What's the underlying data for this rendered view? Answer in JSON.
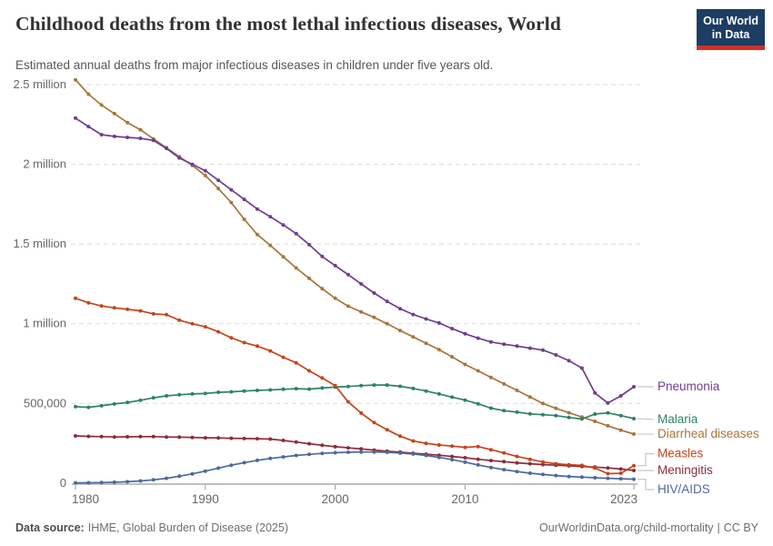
{
  "header": {
    "title": "Childhood deaths from the most lethal infectious diseases, World",
    "subtitle": "Estimated annual deaths from major infectious diseases in children under five years old.",
    "logo": {
      "line1": "Our World",
      "line2": "in Data",
      "bg_color": "#1d3d63",
      "accent_color": "#d22f27"
    }
  },
  "footer": {
    "source_label": "Data source:",
    "source_value": "IHME, Global Burden of Disease (2025)",
    "url_text": "OurWorldinData.org/child-mortality",
    "divider": "|",
    "license_text": "CC BY"
  },
  "chart_data": {
    "type": "line",
    "title": "Childhood deaths from the most lethal infectious diseases, World",
    "xlabel": "",
    "ylabel": "",
    "xlim": [
      1980,
      2023
    ],
    "ylim": [
      0,
      2500000
    ],
    "grid": "dashed-horizontal",
    "legend_position": "right-of-line-ends",
    "x_ticks": [
      1980,
      1990,
      2000,
      2010,
      2023
    ],
    "y_ticks": [
      {
        "value": 0,
        "label": "0"
      },
      {
        "value": 500000,
        "label": "500,000"
      },
      {
        "value": 1000000,
        "label": "1 million"
      },
      {
        "value": 1500000,
        "label": "1.5 million"
      },
      {
        "value": 2000000,
        "label": "2 million"
      },
      {
        "value": 2500000,
        "label": "2.5 million"
      }
    ],
    "colors": {
      "grid": "#dcdcdc",
      "axis": "#9b9b9b",
      "tick_label": "#666666",
      "connector": "#c8c8c8"
    },
    "years": [
      1980,
      1981,
      1982,
      1983,
      1984,
      1985,
      1986,
      1987,
      1988,
      1989,
      1990,
      1991,
      1992,
      1993,
      1994,
      1995,
      1996,
      1997,
      1998,
      1999,
      2000,
      2001,
      2002,
      2003,
      2004,
      2005,
      2006,
      2007,
      2008,
      2009,
      2010,
      2011,
      2012,
      2013,
      2014,
      2015,
      2016,
      2017,
      2018,
      2019,
      2020,
      2021,
      2022,
      2023
    ],
    "series": [
      {
        "id": "diarrheal-diseases",
        "name": "Diarrheal diseases",
        "color": "#A6763C",
        "label_value": 308000,
        "values": [
          2530000,
          2440000,
          2372000,
          2318000,
          2262000,
          2217000,
          2160000,
          2104000,
          2048000,
          1993000,
          1930000,
          1848000,
          1760000,
          1655000,
          1560000,
          1492000,
          1420000,
          1350000,
          1285000,
          1220000,
          1160000,
          1110000,
          1075000,
          1040000,
          1000000,
          958000,
          918000,
          878000,
          838000,
          793000,
          745000,
          705000,
          664000,
          623000,
          582000,
          541000,
          500000,
          470000,
          442000,
          415000,
          388000,
          360000,
          333000,
          308000
        ]
      },
      {
        "id": "malaria",
        "name": "Malaria",
        "color": "#2C8465",
        "label_value": 400000,
        "values": [
          480000,
          476000,
          486000,
          497000,
          506000,
          520000,
          536000,
          548000,
          555000,
          560000,
          563000,
          570000,
          573000,
          578000,
          582000,
          585000,
          589000,
          593000,
          590000,
          597000,
          603000,
          607000,
          612000,
          616000,
          616000,
          608000,
          594000,
          578000,
          560000,
          540000,
          521000,
          498000,
          471000,
          455000,
          446000,
          435000,
          430000,
          424000,
          412000,
          403000,
          434000,
          441000,
          424000,
          405000
        ]
      },
      {
        "id": "pneumonia",
        "name": "Pneumonia",
        "color": "#6D3E91",
        "label_value": 605000,
        "values": [
          2290000,
          2237000,
          2186000,
          2175000,
          2169000,
          2163000,
          2150000,
          2100000,
          2040000,
          2000000,
          1960000,
          1900000,
          1840000,
          1780000,
          1720000,
          1672000,
          1620000,
          1565000,
          1496000,
          1422000,
          1365000,
          1308000,
          1250000,
          1193000,
          1140000,
          1095000,
          1058000,
          1030000,
          1005000,
          970000,
          937000,
          910000,
          886000,
          872000,
          860000,
          847000,
          835000,
          805000,
          768000,
          722000,
          566000,
          503000,
          548000,
          605000
        ]
      },
      {
        "id": "meningitis",
        "name": "Meningitis",
        "color": "#8E2C3B",
        "label_value": 80000,
        "values": [
          297000,
          294000,
          292000,
          290000,
          291000,
          292000,
          292000,
          290000,
          289000,
          287000,
          285000,
          284000,
          282000,
          280000,
          279000,
          277000,
          268000,
          258000,
          248000,
          238000,
          229000,
          222000,
          215000,
          208000,
          201000,
          195000,
          188000,
          182000,
          176000,
          168000,
          160000,
          150000,
          142000,
          135000,
          128000,
          122000,
          117000,
          113000,
          109000,
          105000,
          101000,
          96000,
          89000,
          80000
        ]
      },
      {
        "id": "measles",
        "name": "Measles",
        "color": "#C4451C",
        "label_value": 185000,
        "values": [
          1160000,
          1132000,
          1112000,
          1100000,
          1091000,
          1081000,
          1062000,
          1057000,
          1022000,
          1000000,
          981000,
          950000,
          912000,
          882000,
          860000,
          830000,
          790000,
          755000,
          705000,
          660000,
          612000,
          510000,
          440000,
          380000,
          335000,
          295000,
          265000,
          250000,
          240000,
          233000,
          225000,
          230000,
          210000,
          190000,
          168000,
          150000,
          133000,
          122000,
          116000,
          112000,
          95000,
          60000,
          62000,
          110000
        ]
      },
      {
        "id": "hiv-aids",
        "name": "HIV/AIDS",
        "color": "#4C6A9C",
        "label_value": -40000,
        "values": [
          2000,
          3000,
          4000,
          6000,
          9000,
          14000,
          21000,
          31000,
          44000,
          59000,
          76000,
          95000,
          113000,
          129000,
          143000,
          155000,
          165000,
          174000,
          181000,
          187000,
          191000,
          194000,
          196000,
          196000,
          194000,
          189000,
          183000,
          174000,
          162000,
          148000,
          132000,
          115000,
          99000,
          85000,
          73000,
          63000,
          55000,
          48000,
          42000,
          38000,
          34000,
          31000,
          28000,
          25000
        ]
      }
    ]
  }
}
